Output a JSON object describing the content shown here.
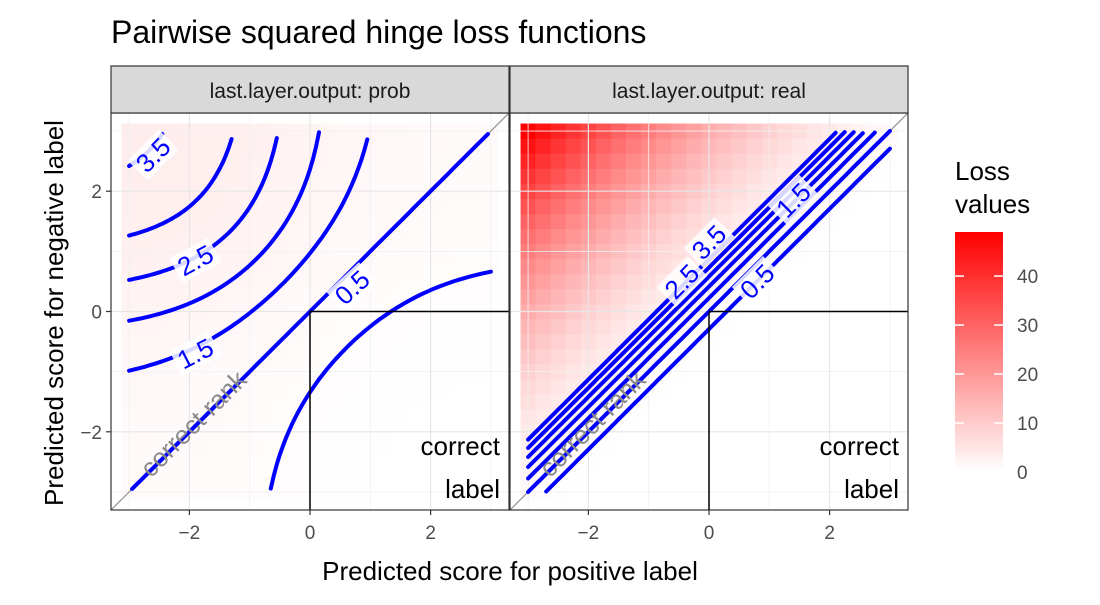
{
  "chart_data": {
    "type": "heatmap",
    "title": "Pairwise squared hinge loss functions",
    "xlabel": "Predicted score for positive label",
    "ylabel": "Predicted score for negative label",
    "xlim": [
      -3.3,
      3.3
    ],
    "ylim": [
      -3.3,
      3.3
    ],
    "x_ticks": [
      -2,
      0,
      2
    ],
    "y_ticks": [
      -2,
      0,
      2
    ],
    "grid": true,
    "legend": {
      "title_lines": [
        "Loss",
        "values"
      ],
      "ticks": [
        0,
        10,
        20,
        30,
        40
      ],
      "range": [
        0,
        49
      ],
      "colors": [
        "#ffffff",
        "#ff0000"
      ],
      "position": "right"
    },
    "contour_color": "#0000ff",
    "facets": [
      {
        "strip": "last.layer.output: prob",
        "loss": "prob",
        "contour_levels": [
          0.5,
          1,
          1.5,
          2,
          2.5,
          3,
          3.5
        ],
        "contour_labels": [
          "0.5",
          "1.5",
          "2.5",
          "3.5"
        ]
      },
      {
        "strip": "last.layer.output: real",
        "loss": "real",
        "contour_levels": [
          0.5,
          1,
          1.5,
          2,
          2.5,
          3,
          3.5
        ],
        "contour_labels": [
          "0.5",
          "1.5",
          "2.5",
          "3.5"
        ]
      }
    ],
    "annotations": {
      "diagonal": "correct rank",
      "quadrant_line1": "correct",
      "quadrant_line2": "label"
    }
  }
}
